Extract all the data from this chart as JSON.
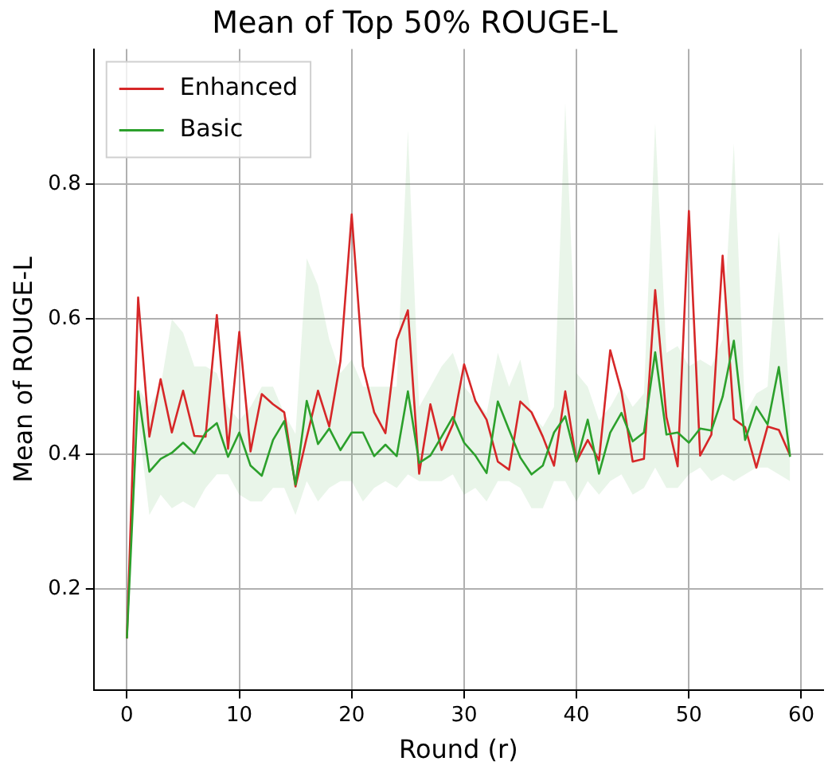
{
  "chart_data": {
    "type": "line",
    "title": "Mean of Top 50% ROUGE-L",
    "xlabel": "Round (r)",
    "ylabel": "Mean of ROUGE-L",
    "x": [
      0,
      1,
      2,
      3,
      4,
      5,
      6,
      7,
      8,
      9,
      10,
      11,
      12,
      13,
      14,
      15,
      16,
      17,
      18,
      19,
      20,
      21,
      22,
      23,
      24,
      25,
      26,
      27,
      28,
      29,
      30,
      31,
      32,
      33,
      34,
      35,
      36,
      37,
      38,
      39,
      40,
      41,
      42,
      43,
      44,
      45,
      46,
      47,
      48,
      49,
      50,
      51,
      52,
      53,
      54,
      55,
      56,
      57,
      58,
      59
    ],
    "series": [
      {
        "name": "Enhanced",
        "color": "#d62728",
        "values": [
          0.127,
          0.632,
          0.426,
          0.511,
          0.432,
          0.494,
          0.427,
          0.426,
          0.606,
          0.408,
          0.581,
          0.404,
          0.489,
          0.474,
          0.462,
          0.352,
          0.425,
          0.494,
          0.441,
          0.538,
          0.755,
          0.53,
          0.462,
          0.431,
          0.569,
          0.613,
          0.371,
          0.474,
          0.406,
          0.444,
          0.533,
          0.479,
          0.451,
          0.389,
          0.377,
          0.478,
          0.462,
          0.426,
          0.383,
          0.493,
          0.389,
          0.421,
          0.391,
          0.554,
          0.493,
          0.389,
          0.393,
          0.643,
          0.455,
          0.382,
          0.76,
          0.398,
          0.429,
          0.694,
          0.452,
          0.44,
          0.38,
          0.441,
          0.436,
          0.398
        ]
      },
      {
        "name": "Basic",
        "color": "#2ca02c",
        "values": [
          0.127,
          0.493,
          0.374,
          0.393,
          0.402,
          0.417,
          0.401,
          0.432,
          0.446,
          0.396,
          0.432,
          0.383,
          0.368,
          0.421,
          0.449,
          0.355,
          0.479,
          0.415,
          0.438,
          0.406,
          0.432,
          0.432,
          0.397,
          0.414,
          0.397,
          0.493,
          0.387,
          0.398,
          0.426,
          0.455,
          0.417,
          0.398,
          0.372,
          0.478,
          0.436,
          0.395,
          0.37,
          0.383,
          0.432,
          0.456,
          0.389,
          0.451,
          0.371,
          0.432,
          0.461,
          0.419,
          0.432,
          0.551,
          0.429,
          0.432,
          0.417,
          0.438,
          0.435,
          0.485,
          0.568,
          0.421,
          0.47,
          0.444,
          0.529,
          0.396
        ],
        "lower": [
          0.127,
          0.45,
          0.31,
          0.34,
          0.32,
          0.33,
          0.32,
          0.35,
          0.37,
          0.37,
          0.34,
          0.33,
          0.33,
          0.35,
          0.35,
          0.31,
          0.36,
          0.33,
          0.35,
          0.36,
          0.36,
          0.33,
          0.35,
          0.36,
          0.35,
          0.37,
          0.36,
          0.36,
          0.36,
          0.37,
          0.34,
          0.35,
          0.33,
          0.36,
          0.36,
          0.35,
          0.32,
          0.32,
          0.36,
          0.36,
          0.33,
          0.36,
          0.34,
          0.36,
          0.37,
          0.34,
          0.35,
          0.38,
          0.35,
          0.35,
          0.37,
          0.38,
          0.36,
          0.37,
          0.36,
          0.37,
          0.38,
          0.38,
          0.37,
          0.36
        ],
        "upper": [
          0.127,
          0.5,
          0.47,
          0.5,
          0.6,
          0.58,
          0.53,
          0.53,
          0.52,
          0.47,
          0.45,
          0.47,
          0.5,
          0.5,
          0.46,
          0.43,
          0.69,
          0.65,
          0.57,
          0.52,
          0.54,
          0.5,
          0.5,
          0.5,
          0.5,
          0.88,
          0.47,
          0.5,
          0.53,
          0.55,
          0.5,
          0.48,
          0.46,
          0.55,
          0.5,
          0.54,
          0.46,
          0.44,
          0.47,
          0.92,
          0.52,
          0.5,
          0.45,
          0.47,
          0.5,
          0.47,
          0.49,
          0.89,
          0.55,
          0.56,
          0.53,
          0.54,
          0.53,
          0.57,
          0.86,
          0.46,
          0.49,
          0.5,
          0.73,
          0.47
        ]
      }
    ],
    "xlim": [
      -2.95,
      61.95
    ],
    "xticks": [
      0,
      10,
      20,
      30,
      40,
      50,
      60
    ],
    "ylim": [
      0.05,
      1.0
    ],
    "yticks": [
      0.2,
      0.4,
      0.6,
      0.8
    ],
    "grid": true,
    "legend": "top left"
  }
}
